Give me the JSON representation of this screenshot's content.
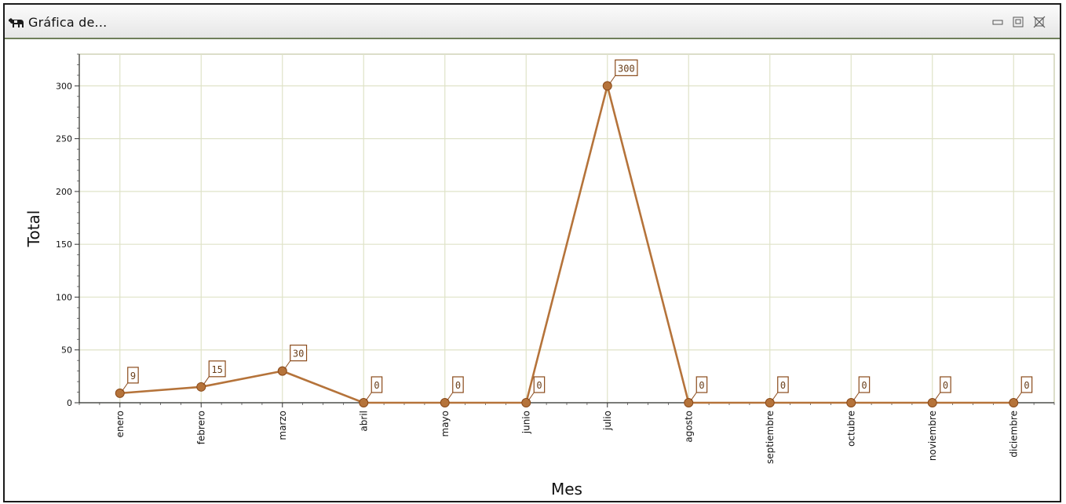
{
  "window": {
    "title": "Gráfica de...",
    "icon": "cow-icon",
    "buttons": [
      "minimize-icon",
      "maximize-icon",
      "close-icon"
    ]
  },
  "colors": {
    "series": "#b5733a",
    "grid": "#dfe3c8",
    "plot_border": "#c4c9a5",
    "label_border": "#8a4a1a",
    "title_bar_line": "#6f7f5a"
  },
  "chart_data": {
    "type": "line",
    "title": "",
    "xlabel": "Mes",
    "ylabel": "Total",
    "categories": [
      "enero",
      "febrero",
      "marzo",
      "abril",
      "mayo",
      "junio",
      "julio",
      "agosto",
      "septiembre",
      "octubre",
      "noviembre",
      "diciembre"
    ],
    "series": [
      {
        "values": [
          9,
          15,
          30,
          0,
          0,
          0,
          300,
          0,
          0,
          0,
          0,
          0
        ]
      }
    ],
    "ylim": [
      0,
      330
    ],
    "yticks": [
      0,
      50,
      100,
      150,
      200,
      250,
      300
    ],
    "grid": true,
    "legend": "none",
    "data_labels": true
  }
}
